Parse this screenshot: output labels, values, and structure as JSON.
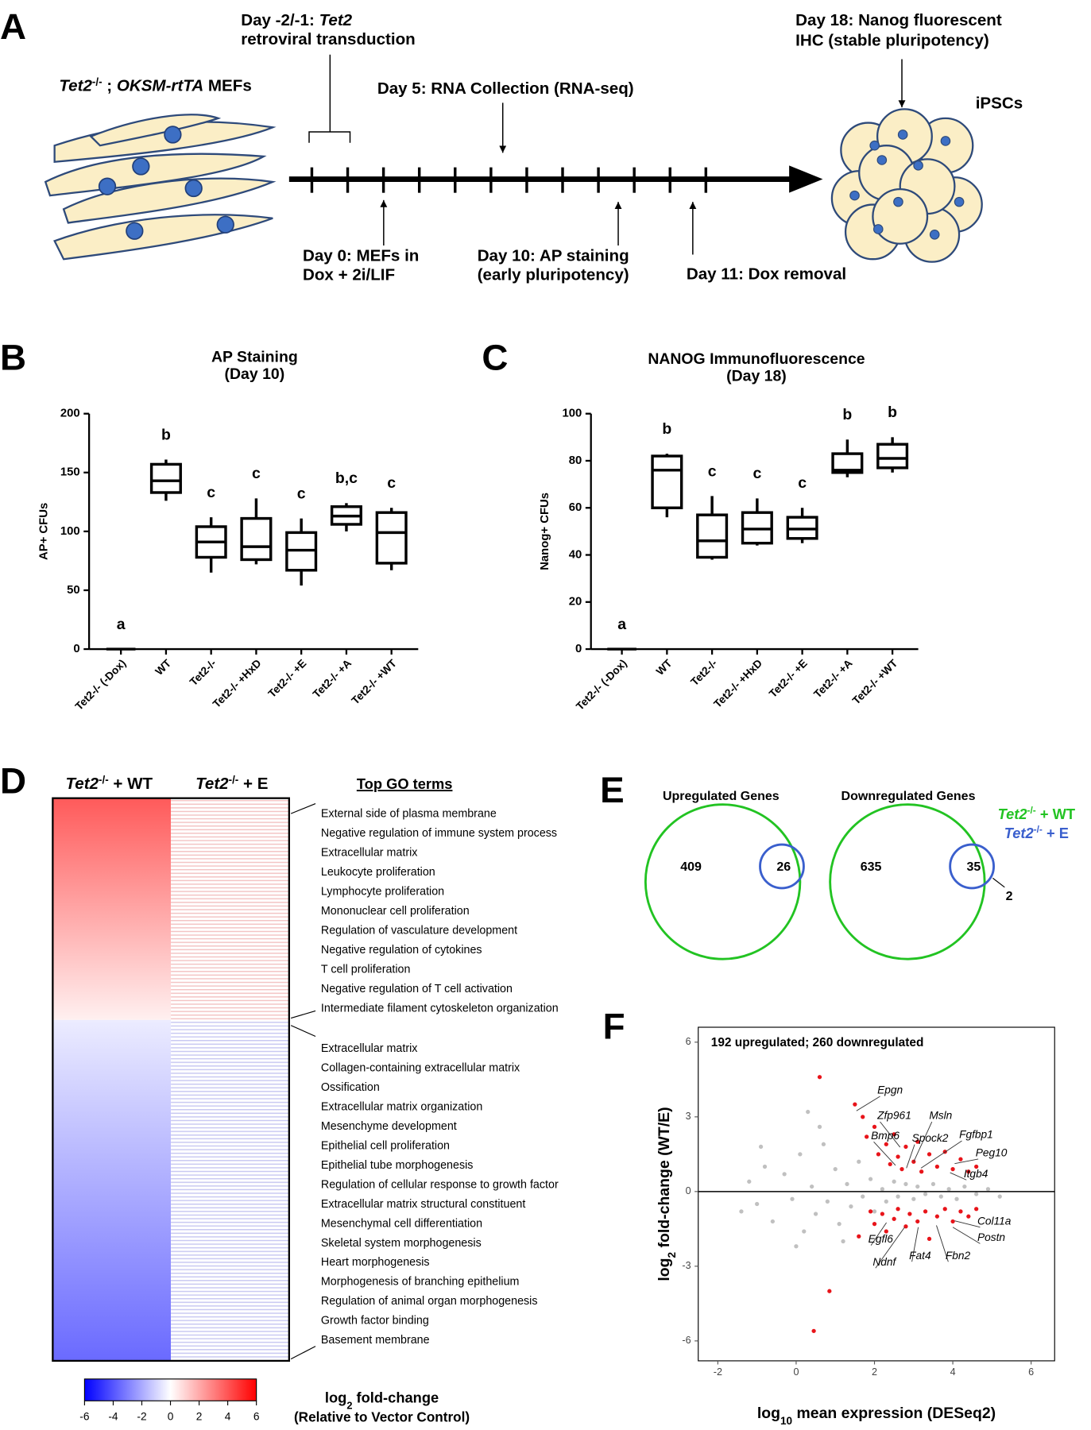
{
  "panel_labels": [
    "A",
    "B",
    "C",
    "D",
    "E",
    "F"
  ],
  "panel_a": {
    "day_minus": {
      "prefix": "Day -2/-1: ",
      "gene": "Tet2",
      "line2": "retroviral transduction"
    },
    "mefs": {
      "gene": "Tet2",
      "sup": "-/-",
      "sep": " ; ",
      "construct": "OKSM-rtTA",
      "rest": " MEFs"
    },
    "day5": "Day 5: RNA Collection (RNA-seq)",
    "day18": [
      "Day 18: Nanog fluorescent",
      "IHC (stable pluripotency)"
    ],
    "ipscs": "iPSCs",
    "day0": [
      "Day 0: MEFs in",
      "Dox + 2i/LIF"
    ],
    "day10": [
      "Day 10: AP staining",
      "(early pluripotency)"
    ],
    "day11": "Day 11: Dox removal"
  },
  "chart_data": [
    {
      "type": "box",
      "title": "AP Staining",
      "subtitle": "(Day 10)",
      "ylabel": "AP+ CFUs",
      "categories": [
        "Tet2-/- (-Dox)",
        "WT",
        "Tet2-/-",
        "Tet2-/- +HxD",
        "Tet2-/- +E",
        "Tet2-/- +A",
        "Tet2-/- +WT"
      ],
      "boxes": [
        {
          "min": 0,
          "q1": 0,
          "median": 0,
          "q3": 0,
          "max": 0
        },
        {
          "min": 126,
          "q1": 133,
          "median": 143,
          "q3": 157,
          "max": 161
        },
        {
          "min": 65,
          "q1": 78,
          "median": 91,
          "q3": 104,
          "max": 112
        },
        {
          "min": 72,
          "q1": 76,
          "median": 87,
          "q3": 111,
          "max": 128
        },
        {
          "min": 54,
          "q1": 67,
          "median": 84,
          "q3": 99,
          "max": 111
        },
        {
          "min": 100,
          "q1": 106,
          "median": 113,
          "q3": 121,
          "max": 124
        },
        {
          "min": 67,
          "q1": 73,
          "median": 99,
          "q3": 116,
          "max": 120
        }
      ],
      "letters": [
        "a",
        "b",
        "c",
        "c",
        "c",
        "b,c",
        "c"
      ],
      "color": "#000000",
      "ylim": [
        0,
        200
      ],
      "yticks": [
        0,
        50,
        100,
        150,
        200
      ]
    },
    {
      "type": "box",
      "title": "NANOG Immunofluorescence",
      "subtitle": "(Day 18)",
      "ylabel": "Nanog+ CFUs",
      "categories": [
        "Tet2-/- (-Dox)",
        "WT",
        "Tet2-/-",
        "Tet2-/- +HxD",
        "Tet2-/- +E",
        "Tet2-/- +A",
        "Tet2-/- +WT"
      ],
      "boxes": [
        {
          "min": 0,
          "q1": 0,
          "median": 0,
          "q3": 0,
          "max": 0
        },
        {
          "min": 56,
          "q1": 60,
          "median": 76,
          "q3": 82,
          "max": 83
        },
        {
          "min": 38,
          "q1": 39,
          "median": 46,
          "q3": 57,
          "max": 65
        },
        {
          "min": 44,
          "q1": 45,
          "median": 51,
          "q3": 58,
          "max": 64
        },
        {
          "min": 45,
          "q1": 47,
          "median": 51,
          "q3": 56,
          "max": 60
        },
        {
          "min": 73,
          "q1": 75,
          "median": 76,
          "q3": 83,
          "max": 89
        },
        {
          "min": 75,
          "q1": 77,
          "median": 81,
          "q3": 87,
          "max": 90
        }
      ],
      "letters": [
        "a",
        "b",
        "c",
        "c",
        "c",
        "b",
        "b"
      ],
      "color": "#000000",
      "ylim": [
        0,
        100
      ],
      "yticks": [
        0,
        20,
        40,
        60,
        80,
        100
      ]
    },
    {
      "type": "scatter",
      "summary": "192 upregulated; 260 downregulated",
      "xlabel": {
        "text": "log",
        "sub": "10",
        "rest": " mean expression (DESeq2)"
      },
      "ylabel": {
        "text": "log",
        "sub": "2",
        "rest": " fold-change (WT/E)"
      },
      "series": [
        {
          "color": "#c0c0c0",
          "x": [
            -1.2,
            -1.0,
            -0.8,
            -0.6,
            -0.3,
            -0.1,
            0.1,
            0.2,
            0.4,
            0.5,
            0.7,
            0.8,
            1.0,
            1.1,
            1.3,
            1.4,
            1.6,
            1.7,
            1.9,
            2.0,
            2.2,
            2.3,
            2.5,
            2.6,
            2.8,
            3.0,
            3.1,
            3.3,
            3.5,
            3.7,
            3.9,
            4.1,
            4.3,
            4.6,
            4.9,
            5.2,
            -1.4,
            -0.9,
            0.0,
            0.6,
            1.2,
            0.3
          ],
          "values": [
            0.4,
            -0.5,
            1.0,
            -1.2,
            0.7,
            -0.3,
            1.5,
            -1.6,
            0.2,
            -0.9,
            1.9,
            -0.4,
            0.9,
            -1.3,
            0.3,
            -0.6,
            1.2,
            -0.2,
            0.5,
            -0.8,
            0.1,
            -0.4,
            0.4,
            -0.2,
            0.3,
            -0.3,
            0.2,
            -0.1,
            0.3,
            -0.2,
            0.1,
            -0.3,
            0.2,
            -0.1,
            0.1,
            -0.2,
            -0.8,
            1.8,
            -2.2,
            2.6,
            -2.0,
            3.2
          ]
        },
        {
          "color": "#e8141a",
          "x": [
            0.6,
            1.5,
            1.7,
            1.8,
            2.0,
            2.1,
            2.3,
            2.4,
            2.5,
            2.6,
            2.7,
            2.8,
            3.0,
            3.1,
            3.2,
            3.4,
            3.6,
            3.8,
            4.0,
            4.2,
            4.4,
            4.6,
            1.9,
            2.0,
            2.2,
            2.3,
            2.5,
            2.6,
            2.8,
            2.9,
            3.1,
            3.3,
            3.4,
            3.6,
            3.8,
            4.0,
            4.2,
            4.4,
            4.6,
            0.85,
            0.45,
            1.6
          ],
          "values": [
            4.6,
            3.5,
            3.0,
            2.2,
            2.6,
            1.5,
            1.9,
            1.1,
            2.3,
            1.4,
            0.9,
            1.8,
            1.2,
            2.0,
            0.8,
            1.5,
            1.0,
            1.6,
            0.9,
            1.3,
            0.8,
            1.0,
            -0.8,
            -1.3,
            -0.9,
            -1.6,
            -1.1,
            -0.7,
            -1.4,
            -0.9,
            -1.2,
            -0.8,
            -1.9,
            -1.0,
            -0.7,
            -1.2,
            -0.8,
            -1.0,
            -0.7,
            -4.0,
            -5.6,
            -1.8
          ]
        }
      ],
      "genes": [
        "Epgn",
        "Zfp961",
        "Msln",
        "Bmp6",
        "Spock2",
        "Fgfbp1",
        "Peg10",
        "Itgb4",
        "Col11a",
        "Postn",
        "Egfl6",
        "Fat4",
        "Fbn2",
        "Ndnf"
      ],
      "hline": 0,
      "xlim": [
        -2.5,
        6.6
      ],
      "ylim": [
        -6.8,
        6.6
      ],
      "xticks": [
        -2,
        0,
        2,
        4,
        6
      ],
      "yticks": [
        -6,
        -3,
        0,
        3,
        6
      ]
    }
  ],
  "panel_d": {
    "columns": [
      {
        "gene": "Tet2",
        "sup": "-/-",
        "rest": " + WT"
      },
      {
        "gene": "Tet2",
        "sup": "-/-",
        "rest": " + E"
      }
    ],
    "go_title": "Top GO terms",
    "go_up": [
      "External side of plasma membrane",
      "Negative regulation of immune system process",
      "Extracellular matrix",
      "Leukocyte proliferation",
      "Lymphocyte proliferation",
      "Mononuclear cell proliferation",
      "Regulation of vasculature development",
      "Negative regulation of cytokines",
      "T cell proliferation",
      "Negative regulation of T cell activation",
      "Intermediate filament cytoskeleton organization"
    ],
    "go_down": [
      "Extracellular matrix",
      "Collagen-containing extracellular matrix",
      "Ossification",
      "Extracellular matrix organization",
      "Mesenchyme development",
      "Epithelial cell proliferation",
      "Epithelial tube morphogenesis",
      "Regulation of cellular response to growth factor",
      "Extracellular matrix structural constituent",
      "Mesenchymal cell differentiation",
      "Skeletal system morphogenesis",
      "Heart morphogenesis",
      "Morphogenesis of branching epithelium",
      "Regulation of animal organ morphogenesis",
      "Growth factor binding",
      "Basement membrane"
    ],
    "colorbar": {
      "range": [
        -6,
        6
      ],
      "ticks": [
        -6,
        -4,
        -2,
        0,
        2,
        4,
        6
      ],
      "colors": [
        "#0000ff",
        "#ffffff",
        "#ff0000"
      ]
    },
    "colorbar_label": {
      "text": "log",
      "sub": "2",
      "rest": " fold-change",
      "line2": "(Relative to Vector Control)"
    }
  },
  "panel_e": {
    "venns": [
      {
        "title": "Upregulated Genes",
        "only": 409,
        "overlap": 26
      },
      {
        "title": "Downregulated Genes",
        "only": 635,
        "overlap": 35,
        "outside": 2
      }
    ],
    "legend": [
      {
        "gene": "Tet2",
        "sup": "-/-",
        "rest": " + WT",
        "color": "#22c322"
      },
      {
        "gene": "Tet2",
        "sup": "-/-",
        "rest": " + E",
        "color": "#3a5fcd"
      }
    ]
  }
}
